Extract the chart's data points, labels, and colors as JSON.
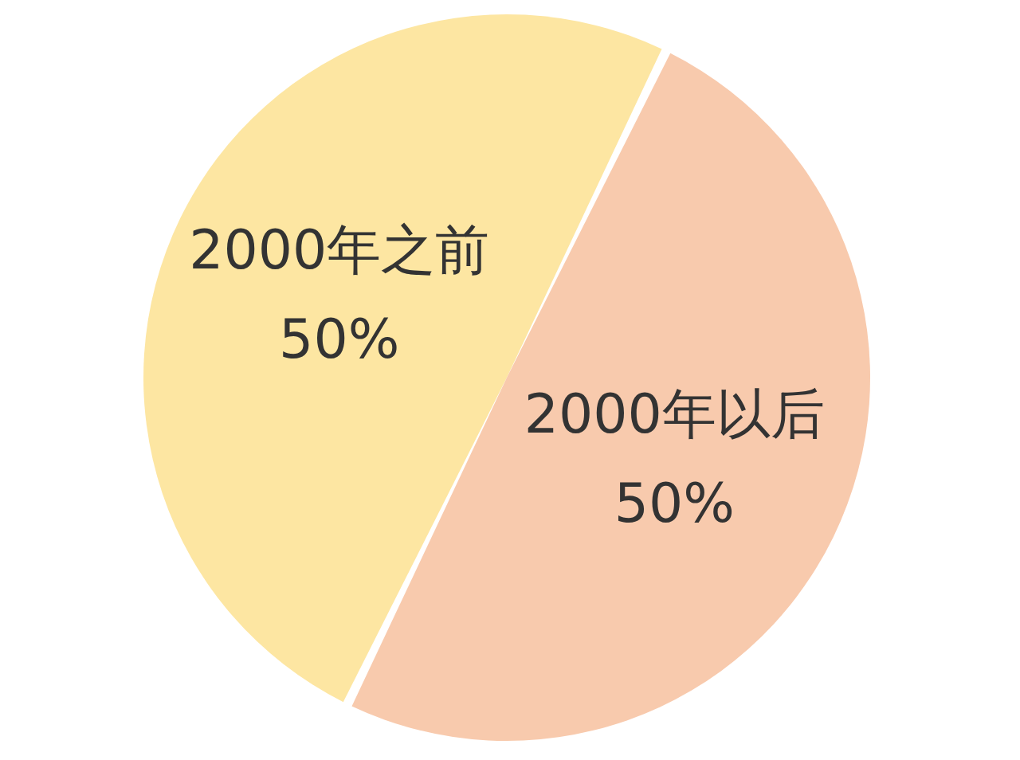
{
  "chart_data": {
    "type": "pie",
    "categories": [
      "2000年之前",
      "2000年以后"
    ],
    "values": [
      50,
      50
    ],
    "value_labels": [
      "50%",
      "50%"
    ],
    "colors": [
      "#fde6a2",
      "#f8caad"
    ]
  }
}
